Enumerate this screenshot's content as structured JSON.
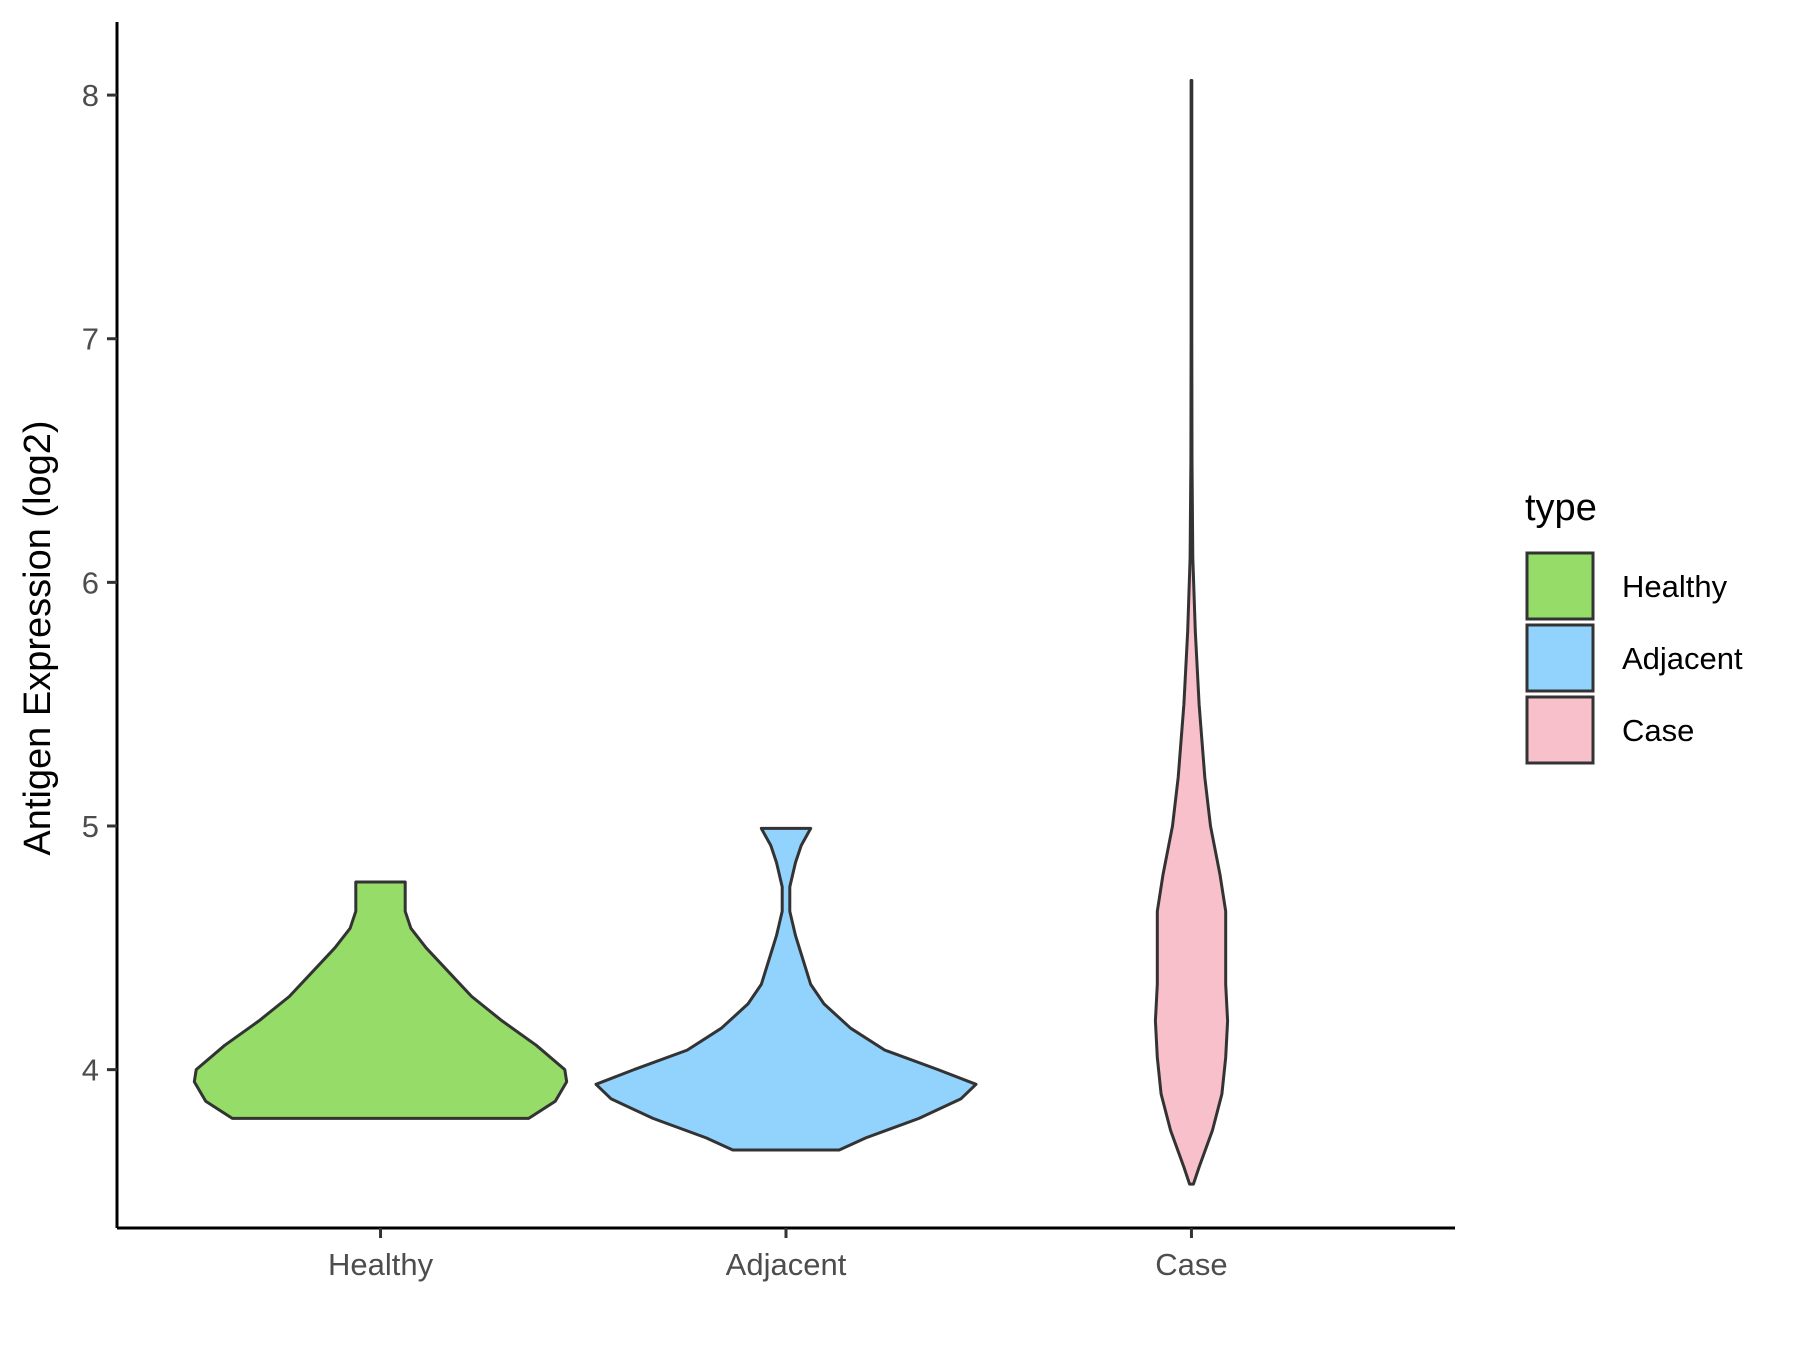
{
  "chart_data": {
    "type": "violin",
    "ylabel": "Antigen Expression (log2)",
    "xlabel": "",
    "ylim": [
      3.35,
      8.3
    ],
    "yticks": [
      4,
      5,
      6,
      7,
      8
    ],
    "categories": [
      "Healthy",
      "Adjacent",
      "Case"
    ],
    "legend": {
      "title": "type",
      "position": "right"
    },
    "grid": false,
    "series": [
      {
        "name": "Healthy",
        "color": "#95dc69",
        "min": 3.8,
        "max": 4.77,
        "profile": [
          [
            3.8,
            0.78
          ],
          [
            3.87,
            0.92
          ],
          [
            3.95,
            0.98
          ],
          [
            4.0,
            0.97
          ],
          [
            4.1,
            0.82
          ],
          [
            4.2,
            0.64
          ],
          [
            4.3,
            0.48
          ],
          [
            4.4,
            0.36
          ],
          [
            4.5,
            0.24
          ],
          [
            4.58,
            0.16
          ],
          [
            4.65,
            0.13
          ],
          [
            4.77,
            0.13
          ]
        ]
      },
      {
        "name": "Adjacent",
        "color": "#92d3fe",
        "min": 3.67,
        "max": 4.99,
        "profile": [
          [
            3.67,
            0.28
          ],
          [
            3.72,
            0.42
          ],
          [
            3.8,
            0.7
          ],
          [
            3.88,
            0.92
          ],
          [
            3.94,
            1.0
          ],
          [
            4.0,
            0.8
          ],
          [
            4.08,
            0.52
          ],
          [
            4.17,
            0.34
          ],
          [
            4.27,
            0.2
          ],
          [
            4.35,
            0.13
          ],
          [
            4.45,
            0.09
          ],
          [
            4.55,
            0.05
          ],
          [
            4.65,
            0.02
          ],
          [
            4.75,
            0.02
          ],
          [
            4.85,
            0.05
          ],
          [
            4.92,
            0.08
          ],
          [
            4.99,
            0.13
          ]
        ]
      },
      {
        "name": "Case",
        "color": "#f7c0cb",
        "min": 3.53,
        "max": 8.06,
        "profile": [
          [
            3.53,
            0.01
          ],
          [
            3.6,
            0.04
          ],
          [
            3.75,
            0.11
          ],
          [
            3.9,
            0.16
          ],
          [
            4.05,
            0.18
          ],
          [
            4.2,
            0.19
          ],
          [
            4.35,
            0.18
          ],
          [
            4.5,
            0.18
          ],
          [
            4.65,
            0.18
          ],
          [
            4.8,
            0.15
          ],
          [
            5.0,
            0.1
          ],
          [
            5.2,
            0.07
          ],
          [
            5.5,
            0.04
          ],
          [
            5.8,
            0.02
          ],
          [
            6.1,
            0.007
          ],
          [
            6.5,
            0.003
          ],
          [
            7.0,
            0.002
          ],
          [
            8.06,
            0.002
          ]
        ]
      }
    ]
  }
}
